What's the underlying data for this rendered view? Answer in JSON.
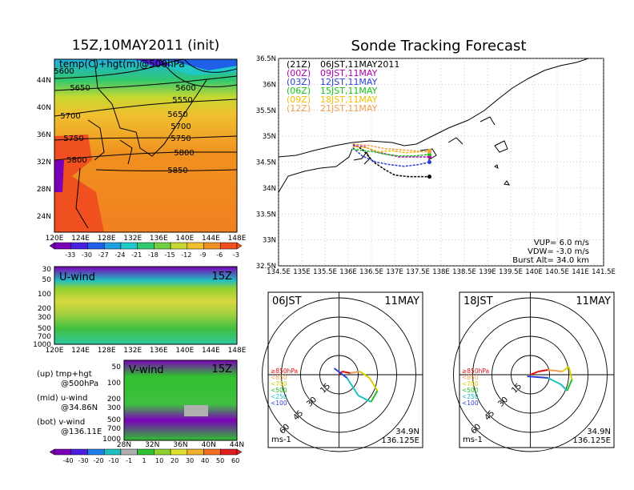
{
  "left": {
    "title": "15Z,10MAY2011 (init)",
    "top_label": "temp(C)+hgt(m)@500hPa",
    "lon_ticks": [
      "120E",
      "124E",
      "128E",
      "132E",
      "136E",
      "140E",
      "144E",
      "148E"
    ],
    "lat_ticks": [
      "44N",
      "40N",
      "36N",
      "32N",
      "28N",
      "24N"
    ],
    "contour_labels": [
      "5600",
      "5650",
      "5700",
      "5750",
      "5800",
      "5550",
      "5650",
      "5600",
      "5700",
      "5750",
      "5800",
      "5850"
    ],
    "temp_colorbar": [
      "-33",
      "-30",
      "-27",
      "-24",
      "-21",
      "-18",
      "-15",
      "-12",
      "-9",
      "-6",
      "-3"
    ],
    "uwind_label": "U-wind",
    "uwind_time": "15Z",
    "p_ticks": [
      "30",
      "50",
      "100",
      "200",
      "300",
      "500",
      "700",
      "1000"
    ],
    "vwind_label": "V-wind",
    "vwind_time": "15Z",
    "vwind_p_ticks": [
      "50",
      "100",
      "200",
      "300",
      "500",
      "700",
      "1000"
    ],
    "lat_ticks_bottom": [
      "28N",
      "32N",
      "36N",
      "40N",
      "44N"
    ],
    "wind_colorbar": [
      "-40",
      "-30",
      "-20",
      "-10",
      "-1",
      "1",
      "10",
      "20",
      "30",
      "40",
      "50",
      "60"
    ],
    "legend_lines": [
      [
        "(up) tmp+hgt",
        "@500hPa"
      ],
      [
        "(mid) u-wind",
        "@34.86N"
      ],
      [
        "(bot) v-wind",
        "@136.11E"
      ]
    ]
  },
  "chart_data": {
    "type": "line",
    "title": "Sonde Tracking Forecast",
    "lon_ticks": [
      "134.5E",
      "135E",
      "135.5E",
      "136E",
      "136.5E",
      "137E",
      "137.5E",
      "138E",
      "138.5E",
      "139E",
      "139.5E",
      "140E",
      "140.5E",
      "141E",
      "141.5E"
    ],
    "lat_ticks": [
      "36.5N",
      "36N",
      "35.5N",
      "35N",
      "34.5N",
      "34N",
      "33.5N",
      "33N",
      "32.5N"
    ],
    "xlim": [
      134.5,
      141.5
    ],
    "ylim": [
      32.5,
      36.5
    ],
    "legend": [
      {
        "code": "(21Z)",
        "label": "06JST,11MAY2011",
        "color": "#000000"
      },
      {
        "code": "(00Z)",
        "label": "09JST,11MAY",
        "color": "#b000b0"
      },
      {
        "code": "(03Z)",
        "label": "12JST,11MAY",
        "color": "#2a3fd6"
      },
      {
        "code": "(06Z)",
        "label": "15JST,11MAY",
        "color": "#15c415"
      },
      {
        "code": "(09Z)",
        "label": "18JST,11MAY",
        "color": "#f0c000"
      },
      {
        "code": "(12Z)",
        "label": "21JST,11MAY",
        "color": "#f0a050"
      }
    ],
    "series": [
      {
        "color": "#000000",
        "lon": [
          136.1,
          136.3,
          136.55,
          136.8,
          137.0,
          137.3,
          137.75
        ],
        "lat": [
          34.85,
          34.75,
          34.5,
          34.35,
          34.25,
          34.22,
          34.22
        ]
      },
      {
        "color": "#b000b0",
        "lon": [
          136.1,
          136.35,
          136.6,
          136.85,
          137.1,
          137.45,
          137.75
        ],
        "lat": [
          34.82,
          34.8,
          34.7,
          34.65,
          34.6,
          34.6,
          34.6
        ]
      },
      {
        "color": "#2a3fd6",
        "lon": [
          136.1,
          136.3,
          136.6,
          136.9,
          137.2,
          137.5,
          137.75
        ],
        "lat": [
          34.78,
          34.62,
          34.5,
          34.45,
          34.42,
          34.45,
          34.5
        ]
      },
      {
        "color": "#15c415",
        "lon": [
          136.1,
          136.35,
          136.55,
          136.8,
          137.1,
          137.45,
          137.75
        ],
        "lat": [
          34.75,
          34.72,
          34.7,
          34.65,
          34.62,
          34.62,
          34.65
        ]
      },
      {
        "color": "#f0c000",
        "lon": [
          136.1,
          136.4,
          136.65,
          136.95,
          137.25,
          137.55,
          137.75
        ],
        "lat": [
          34.8,
          34.78,
          34.7,
          34.72,
          34.68,
          34.7,
          34.72
        ]
      },
      {
        "color": "#f0a050",
        "lon": [
          136.1,
          136.45,
          136.8,
          137.1,
          137.4,
          137.6,
          137.75
        ],
        "lat": [
          34.85,
          34.82,
          34.76,
          34.74,
          34.72,
          34.7,
          34.7
        ]
      }
    ],
    "params": [
      "VUP= 6.0 m/s",
      "VDW= -3.0 m/s",
      "Burst Alt= 34.0 km"
    ]
  },
  "polar": [
    {
      "time": "06JST",
      "date": "11MAY",
      "ring_labels": [
        "15",
        "30",
        "45",
        "60"
      ],
      "levels": [
        {
          "label": "≥850hPa",
          "color": "#e01010"
        },
        {
          "label": "<850",
          "color": "#f0a050"
        },
        {
          "label": "<700",
          "color": "#d8d000"
        },
        {
          "label": "<500",
          "color": "#20c020"
        },
        {
          "label": "<250",
          "color": "#20c0c0"
        },
        {
          "label": "<100",
          "color": "#2a3fd6"
        }
      ],
      "unit": "ms-1",
      "coord_lat": "34.9N",
      "coord_lon": "136.125E"
    },
    {
      "time": "18JST",
      "date": "11MAY",
      "ring_labels": [
        "15",
        "30",
        "45",
        "60"
      ],
      "levels": [
        {
          "label": "≥850hPa",
          "color": "#e01010"
        },
        {
          "label": "<850",
          "color": "#f0a050"
        },
        {
          "label": "<700",
          "color": "#d8d000"
        },
        {
          "label": "<500",
          "color": "#20c020"
        },
        {
          "label": "<250",
          "color": "#20c0c0"
        },
        {
          "label": "<100",
          "color": "#2a3fd6"
        }
      ],
      "unit": "ms-1",
      "coord_lat": "34.9N",
      "coord_lon": "136.125E"
    }
  ],
  "colors": {
    "temp_bar": [
      "#7a00b8",
      "#4a20e0",
      "#2060e8",
      "#20a0e0",
      "#20c8c8",
      "#30c870",
      "#70d040",
      "#c8d830",
      "#f0c030",
      "#f09020",
      "#f05020"
    ],
    "wind_bar": [
      "#7a00b8",
      "#4a20e0",
      "#2080e8",
      "#20c0c0",
      "#b0b0b0",
      "#30c030",
      "#90d030",
      "#e0e030",
      "#f0b030",
      "#f07020",
      "#e02020"
    ]
  }
}
